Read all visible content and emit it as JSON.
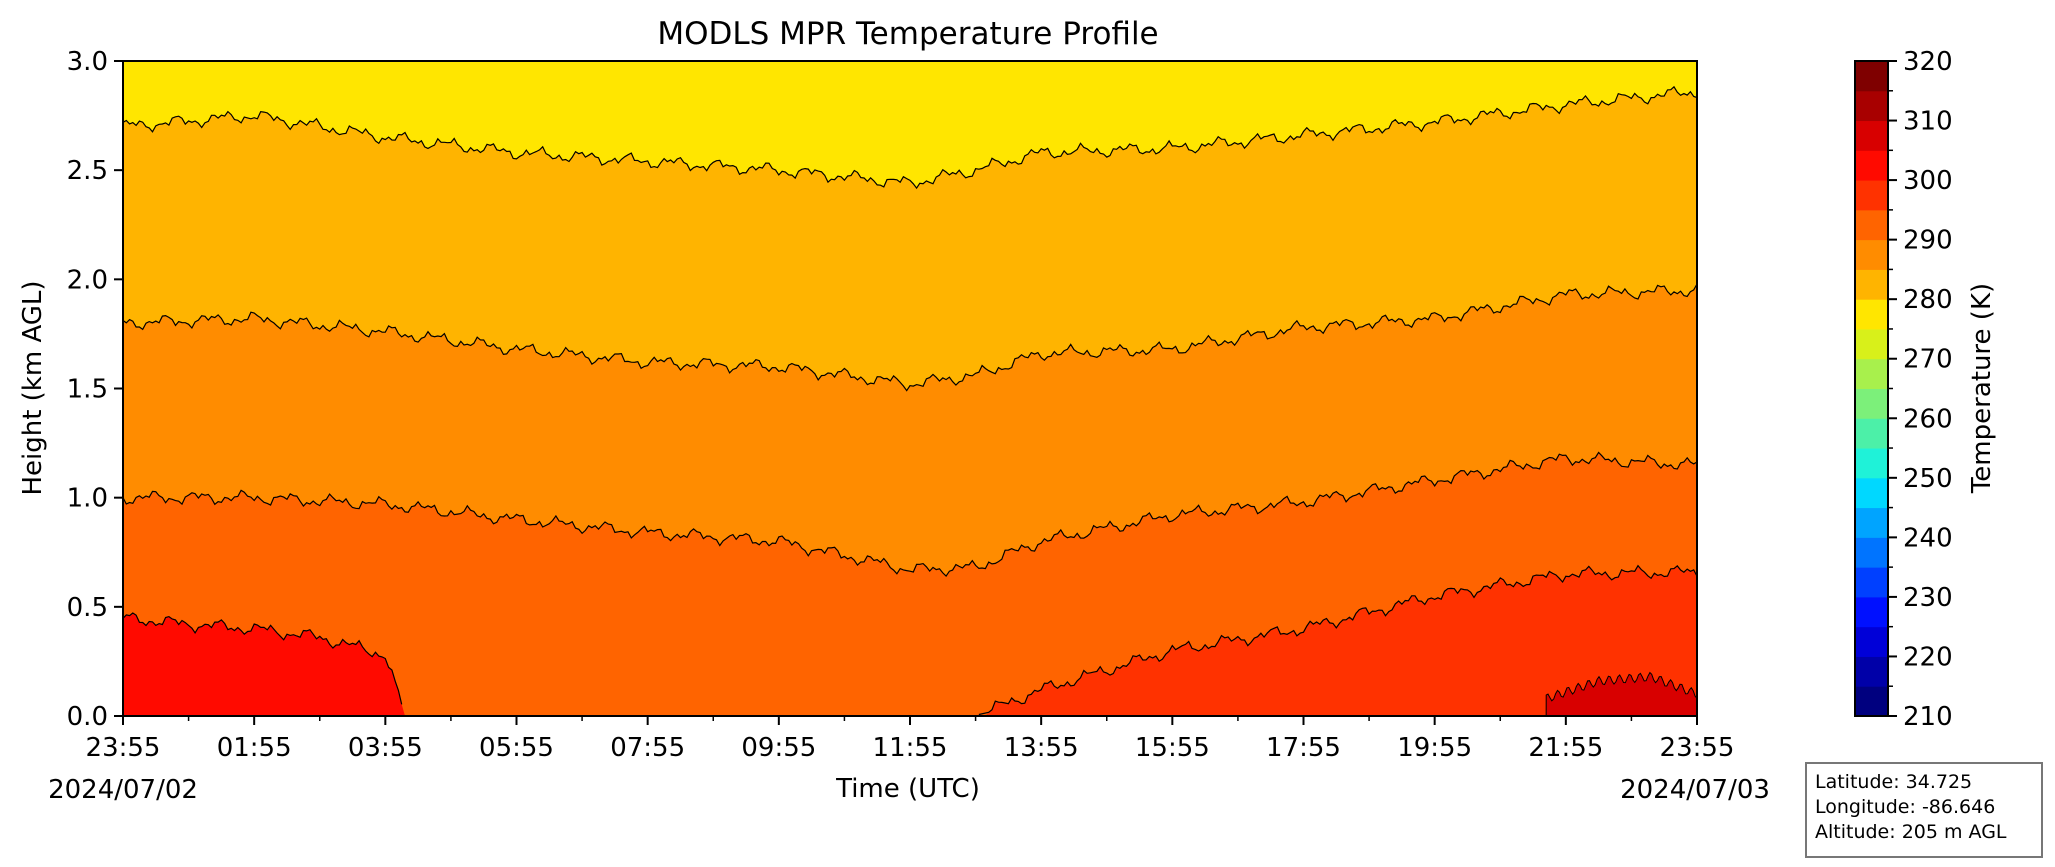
{
  "chart_data": {
    "type": "heatmap",
    "title": "MODLS MPR Temperature Profile",
    "xlabel": "Time (UTC)",
    "ylabel": "Height (km AGL)",
    "x_tick_labels": [
      "23:55",
      "01:55",
      "03:55",
      "05:55",
      "07:55",
      "09:55",
      "11:55",
      "13:55",
      "15:55",
      "17:55",
      "19:55",
      "21:55",
      "23:55"
    ],
    "x_dates": [
      "2024/07/02",
      "2024/07/03"
    ],
    "y_tick_labels": [
      "0.0",
      "0.5",
      "1.0",
      "1.5",
      "2.0",
      "2.5",
      "3.0"
    ],
    "ylim": [
      0,
      3.0
    ],
    "x_range_hours": [
      0,
      24
    ],
    "colorbar": {
      "label": "Temperature (K)",
      "range": [
        210,
        320
      ],
      "step": 5,
      "tick_labels": [
        "210",
        "220",
        "230",
        "240",
        "250",
        "260",
        "270",
        "280",
        "290",
        "300",
        "310",
        "320"
      ],
      "colors": [
        "#00007f",
        "#0000a8",
        "#0000d8",
        "#0010ff",
        "#0040ff",
        "#0074ff",
        "#00a4ff",
        "#00d8ff",
        "#1ff2d8",
        "#4cf0a8",
        "#7cf07a",
        "#a8f04c",
        "#d8f01a",
        "#ffe600",
        "#ffb400",
        "#ff8c00",
        "#ff6400",
        "#ff3200",
        "#ff0a00",
        "#d80000",
        "#a80000",
        "#7f0000"
      ]
    },
    "contour_levels_K": [
      300,
      295,
      290,
      285,
      280,
      275
    ],
    "contour_heights_km": [
      {
        "level": 300,
        "x_hours": [
          0,
          1,
          2,
          3,
          4,
          4.3,
          24
        ],
        "height": [
          0.45,
          0.42,
          0.4,
          0.36,
          0.28,
          0.0,
          0.0
        ]
      },
      {
        "level": 295,
        "x_hours": [
          0,
          2,
          4,
          6,
          8,
          10,
          12,
          13,
          14,
          16,
          18,
          20,
          22,
          24
        ],
        "height": [
          0.0,
          0.0,
          0.0,
          0.0,
          0.0,
          0.0,
          0.0,
          0.0,
          0.12,
          0.3,
          0.4,
          0.55,
          0.65,
          0.66
        ]
      },
      {
        "level": 290,
        "x_hours": [
          0,
          2,
          4,
          6,
          8,
          10,
          12,
          13,
          14,
          16,
          18,
          20,
          22,
          24
        ],
        "height": [
          1.0,
          1.0,
          0.97,
          0.9,
          0.84,
          0.8,
          0.67,
          0.68,
          0.8,
          0.92,
          0.98,
          1.08,
          1.18,
          1.15
        ]
      },
      {
        "level": 285,
        "x_hours": [
          0,
          2,
          4,
          6,
          8,
          10,
          12,
          13,
          14,
          16,
          18,
          20,
          22,
          24
        ],
        "height": [
          1.8,
          1.82,
          1.76,
          1.68,
          1.62,
          1.6,
          1.52,
          1.56,
          1.66,
          1.68,
          1.78,
          1.82,
          1.93,
          1.95
        ]
      },
      {
        "level": 280,
        "x_hours": [
          0,
          2,
          4,
          6,
          8,
          10,
          12,
          13,
          14,
          16,
          18,
          20,
          22,
          24
        ],
        "height": [
          2.7,
          2.75,
          2.65,
          2.58,
          2.54,
          2.5,
          2.44,
          2.5,
          2.58,
          2.6,
          2.66,
          2.72,
          2.8,
          2.86
        ]
      }
    ],
    "surface_band_310": {
      "x_hours": [
        21.7,
        22.5,
        23.3,
        24
      ],
      "height": [
        0.08,
        0.16,
        0.18,
        0.1
      ]
    }
  },
  "info": {
    "latitude": "Latitude: 34.725",
    "longitude": "Longitude: -86.646",
    "altitude": "Altitude: 205 m AGL"
  }
}
